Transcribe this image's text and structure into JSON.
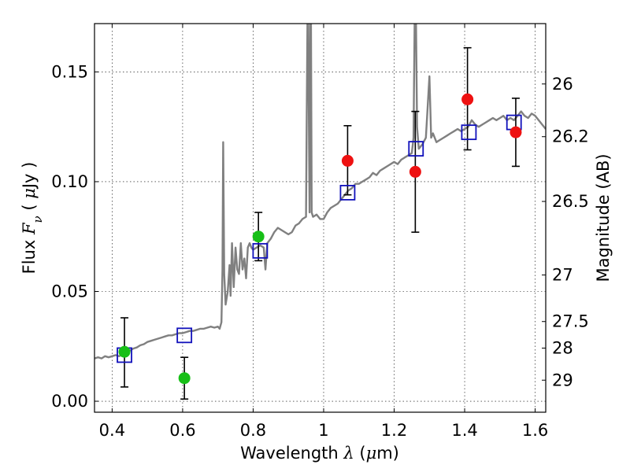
{
  "chart_data": {
    "type": "scatter",
    "xlabel_parts": [
      "Wavelength  ",
      "λ",
      " (",
      "μ",
      "m)"
    ],
    "ylabel_parts": [
      "Flux  ",
      "F",
      "ν",
      "  (  ",
      "μ",
      "Jy )"
    ],
    "y2label": "Magnitude (AB)",
    "xlim": [
      0.35,
      1.63
    ],
    "ylim": [
      -0.005,
      0.172
    ],
    "grid": true,
    "x_ticks": [
      0.4,
      0.6,
      0.8,
      1.0,
      1.2,
      1.4,
      1.6
    ],
    "x_tick_labels": [
      "0.4",
      "0.6",
      "0.8",
      "1",
      "1.2",
      "1.4",
      "1.6"
    ],
    "y_ticks": [
      0.0,
      0.05,
      0.1,
      0.15
    ],
    "y_tick_labels": [
      "0.00",
      "0.05",
      "0.10",
      "0.15"
    ],
    "y2_tick_labels": [
      {
        "label": "26",
        "flux": 0.1445
      },
      {
        "label": "26.2",
        "flux": 0.1205
      },
      {
        "label": "26.5",
        "flux": 0.091
      },
      {
        "label": "27",
        "flux": 0.0575
      },
      {
        "label": "27.5",
        "flux": 0.0363
      },
      {
        "label": "28",
        "flux": 0.0242
      },
      {
        "label": "29",
        "flux": 0.0096
      }
    ],
    "colors": {
      "model": "#808080",
      "green_points": "#17bf17",
      "red_points": "#ee1111",
      "squares": "#1111bb",
      "errorbars": "#000000"
    },
    "series": [
      {
        "kind": "line",
        "points": [
          [
            0.35,
            0.0195
          ],
          [
            0.36,
            0.02
          ],
          [
            0.37,
            0.0195
          ],
          [
            0.38,
            0.0205
          ],
          [
            0.39,
            0.02
          ],
          [
            0.4,
            0.0205
          ],
          [
            0.41,
            0.021
          ],
          [
            0.42,
            0.0205
          ],
          [
            0.43,
            0.0215
          ],
          [
            0.44,
            0.0225
          ],
          [
            0.45,
            0.023
          ],
          [
            0.46,
            0.024
          ],
          [
            0.47,
            0.0245
          ],
          [
            0.48,
            0.0255
          ],
          [
            0.49,
            0.026
          ],
          [
            0.5,
            0.027
          ],
          [
            0.51,
            0.0275
          ],
          [
            0.52,
            0.028
          ],
          [
            0.53,
            0.0285
          ],
          [
            0.54,
            0.029
          ],
          [
            0.55,
            0.0295
          ],
          [
            0.56,
            0.03
          ],
          [
            0.57,
            0.03
          ],
          [
            0.58,
            0.0305
          ],
          [
            0.59,
            0.031
          ],
          [
            0.6,
            0.031
          ],
          [
            0.61,
            0.0315
          ],
          [
            0.62,
            0.032
          ],
          [
            0.63,
            0.032
          ],
          [
            0.64,
            0.0325
          ],
          [
            0.65,
            0.033
          ],
          [
            0.66,
            0.033
          ],
          [
            0.67,
            0.0335
          ],
          [
            0.68,
            0.034
          ],
          [
            0.69,
            0.0335
          ],
          [
            0.7,
            0.034
          ],
          [
            0.705,
            0.033
          ],
          [
            0.71,
            0.036
          ],
          [
            0.713,
            0.06
          ],
          [
            0.715,
            0.118
          ],
          [
            0.718,
            0.058
          ],
          [
            0.722,
            0.044
          ],
          [
            0.728,
            0.05
          ],
          [
            0.733,
            0.062
          ],
          [
            0.736,
            0.048
          ],
          [
            0.74,
            0.072
          ],
          [
            0.745,
            0.052
          ],
          [
            0.75,
            0.07
          ],
          [
            0.755,
            0.06
          ],
          [
            0.76,
            0.058
          ],
          [
            0.765,
            0.072
          ],
          [
            0.77,
            0.06
          ],
          [
            0.775,
            0.065
          ],
          [
            0.78,
            0.056
          ],
          [
            0.785,
            0.07
          ],
          [
            0.79,
            0.072
          ],
          [
            0.795,
            0.07
          ],
          [
            0.8,
            0.069
          ],
          [
            0.81,
            0.07
          ],
          [
            0.82,
            0.071
          ],
          [
            0.83,
            0.07
          ],
          [
            0.835,
            0.06
          ],
          [
            0.84,
            0.072
          ],
          [
            0.85,
            0.074
          ],
          [
            0.86,
            0.077
          ],
          [
            0.87,
            0.079
          ],
          [
            0.88,
            0.078
          ],
          [
            0.89,
            0.077
          ],
          [
            0.9,
            0.076
          ],
          [
            0.91,
            0.077
          ],
          [
            0.92,
            0.08
          ],
          [
            0.93,
            0.081
          ],
          [
            0.94,
            0.083
          ],
          [
            0.95,
            0.084
          ],
          [
            0.952,
            0.13
          ],
          [
            0.954,
            0.172
          ],
          [
            0.956,
            0.172
          ],
          [
            0.958,
            0.13
          ],
          [
            0.96,
            0.086
          ],
          [
            0.962,
            0.172
          ],
          [
            0.964,
            0.172
          ],
          [
            0.966,
            0.086
          ],
          [
            0.97,
            0.084
          ],
          [
            0.98,
            0.085
          ],
          [
            0.99,
            0.083
          ],
          [
            1.0,
            0.083
          ],
          [
            1.01,
            0.086
          ],
          [
            1.02,
            0.088
          ],
          [
            1.03,
            0.089
          ],
          [
            1.04,
            0.09
          ],
          [
            1.05,
            0.092
          ],
          [
            1.06,
            0.094
          ],
          [
            1.07,
            0.096
          ],
          [
            1.08,
            0.097
          ],
          [
            1.09,
            0.099
          ],
          [
            1.1,
            0.099
          ],
          [
            1.11,
            0.1
          ],
          [
            1.12,
            0.101
          ],
          [
            1.13,
            0.102
          ],
          [
            1.14,
            0.104
          ],
          [
            1.15,
            0.103
          ],
          [
            1.16,
            0.105
          ],
          [
            1.17,
            0.106
          ],
          [
            1.18,
            0.107
          ],
          [
            1.19,
            0.108
          ],
          [
            1.2,
            0.109
          ],
          [
            1.21,
            0.108
          ],
          [
            1.22,
            0.11
          ],
          [
            1.23,
            0.111
          ],
          [
            1.24,
            0.112
          ],
          [
            1.25,
            0.113
          ],
          [
            1.255,
            0.12
          ],
          [
            1.258,
            0.172
          ],
          [
            1.262,
            0.172
          ],
          [
            1.265,
            0.125
          ],
          [
            1.27,
            0.115
          ],
          [
            1.28,
            0.117
          ],
          [
            1.29,
            0.12
          ],
          [
            1.3,
            0.148
          ],
          [
            1.305,
            0.12
          ],
          [
            1.31,
            0.122
          ],
          [
            1.32,
            0.118
          ],
          [
            1.33,
            0.119
          ],
          [
            1.34,
            0.12
          ],
          [
            1.35,
            0.121
          ],
          [
            1.36,
            0.122
          ],
          [
            1.37,
            0.123
          ],
          [
            1.38,
            0.124
          ],
          [
            1.39,
            0.123
          ],
          [
            1.4,
            0.124
          ],
          [
            1.41,
            0.125
          ],
          [
            1.42,
            0.128
          ],
          [
            1.43,
            0.126
          ],
          [
            1.44,
            0.125
          ],
          [
            1.45,
            0.126
          ],
          [
            1.46,
            0.127
          ],
          [
            1.47,
            0.128
          ],
          [
            1.48,
            0.129
          ],
          [
            1.49,
            0.128
          ],
          [
            1.5,
            0.129
          ],
          [
            1.51,
            0.13
          ],
          [
            1.52,
            0.128
          ],
          [
            1.53,
            0.129
          ],
          [
            1.54,
            0.128
          ],
          [
            1.55,
            0.13
          ],
          [
            1.56,
            0.132
          ],
          [
            1.57,
            0.13
          ],
          [
            1.58,
            0.129
          ],
          [
            1.59,
            0.131
          ],
          [
            1.6,
            0.13
          ],
          [
            1.61,
            0.128
          ],
          [
            1.62,
            0.126
          ],
          [
            1.63,
            0.124
          ]
        ]
      },
      {
        "kind": "points",
        "marker": "circle",
        "color_key": "green_points",
        "points": [
          {
            "x": 0.435,
            "y": 0.0225,
            "err_low": 0.0065,
            "err_high": 0.038
          },
          {
            "x": 0.605,
            "y": 0.0105,
            "err_low": 0.001,
            "err_high": 0.02
          },
          {
            "x": 0.815,
            "y": 0.075,
            "err_low": 0.064,
            "err_high": 0.086
          }
        ]
      },
      {
        "kind": "points",
        "marker": "circle",
        "color_key": "red_points",
        "points": [
          {
            "x": 1.068,
            "y": 0.1095,
            "err_low": 0.094,
            "err_high": 0.1255
          },
          {
            "x": 1.26,
            "y": 0.1045,
            "err_low": 0.077,
            "err_high": 0.132
          },
          {
            "x": 1.408,
            "y": 0.1375,
            "err_low": 0.1145,
            "err_high": 0.161
          },
          {
            "x": 1.545,
            "y": 0.1225,
            "err_low": 0.107,
            "err_high": 0.138
          }
        ]
      },
      {
        "kind": "points",
        "marker": "square",
        "color_key": "squares",
        "points": [
          {
            "x": 0.435,
            "y": 0.021
          },
          {
            "x": 0.605,
            "y": 0.03
          },
          {
            "x": 0.82,
            "y": 0.0685
          },
          {
            "x": 1.068,
            "y": 0.095
          },
          {
            "x": 1.262,
            "y": 0.115
          },
          {
            "x": 1.412,
            "y": 0.1225
          },
          {
            "x": 1.54,
            "y": 0.127
          }
        ]
      }
    ]
  }
}
